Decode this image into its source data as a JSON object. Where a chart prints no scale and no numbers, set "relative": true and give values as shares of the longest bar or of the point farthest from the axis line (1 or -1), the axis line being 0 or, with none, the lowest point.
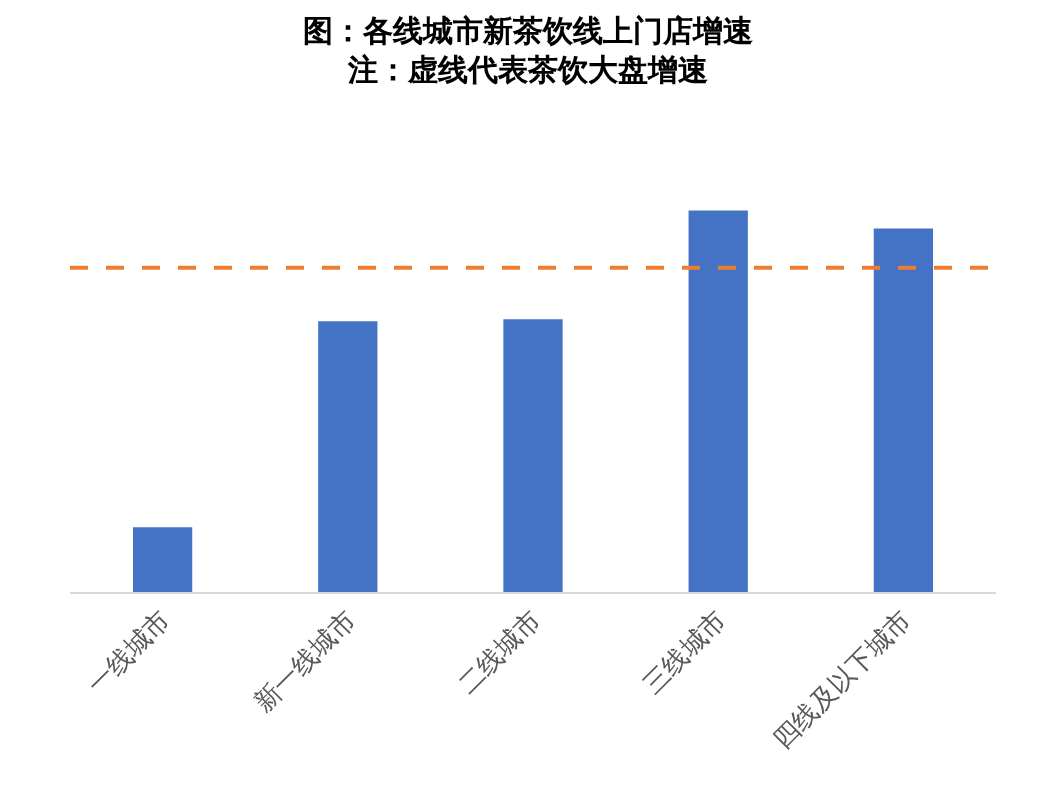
{
  "chart_data": {
    "type": "bar",
    "title": "图：各线城市新茶饮线上门店增速",
    "subtitle": "注：虚线代表茶饮大盘增速",
    "categories": [
      "一线城市",
      "新一线城市",
      "二线城市",
      "三线城市",
      "四线及以下城市"
    ],
    "values": [
      0.17,
      0.71,
      0.715,
      1,
      0.953
    ],
    "color": "#4472c4",
    "relative": true,
    "ref_lines": [
      {
        "axis": "y",
        "value": 0.85,
        "color": "#ed7d31",
        "line_style": "dashed"
      }
    ]
  }
}
